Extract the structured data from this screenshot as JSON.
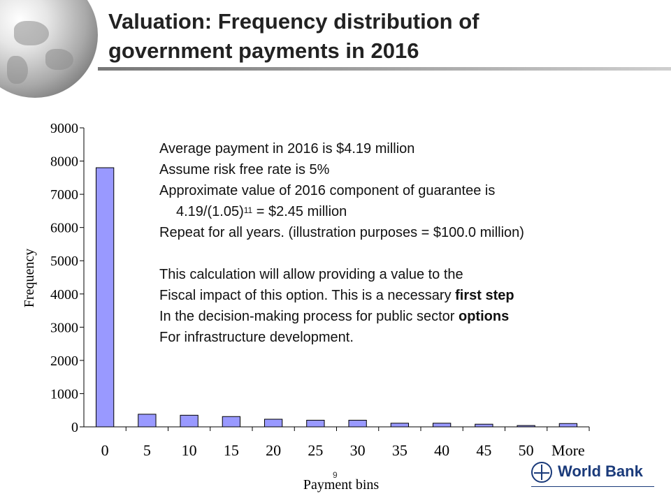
{
  "slide": {
    "title_line1": "Valuation: Frequency distribution of",
    "title_line2": "government payments in 2016",
    "page_number": "9"
  },
  "notes": {
    "line1": "Average payment in 2016 is $4.19 million",
    "line2": "Assume risk free rate is 5%",
    "line3": "Approximate value of 2016 component of guarantee is",
    "line4_pre": "4.19/(1.05)",
    "line4_sup": "11",
    "line4_post": " = $2.45 million",
    "line5": "Repeat for all years. (illustration purposes = $100.0 million)",
    "line6": "This calculation will allow providing a value to the",
    "line7_pre": "Fiscal impact of this option. This is a necessary ",
    "line7_bold": "first step",
    "line8_pre": "In the decision-making process for public sector ",
    "line8_bold": "options",
    "line9": "For infrastructure development."
  },
  "logo": {
    "text": "World Bank"
  },
  "colors": {
    "bar_fill": "#9999ff",
    "bar_stroke": "#000000",
    "logo_blue": "#1a3a7a"
  },
  "chart_data": {
    "type": "bar",
    "categories": [
      "0",
      "5",
      "10",
      "15",
      "20",
      "25",
      "30",
      "35",
      "40",
      "45",
      "50",
      "More"
    ],
    "values": [
      7800,
      380,
      350,
      310,
      230,
      200,
      200,
      110,
      110,
      80,
      40,
      100
    ],
    "xlabel": "Payment bins",
    "ylabel": "Frequency",
    "ylim": [
      0,
      9000
    ],
    "yticks": [
      0,
      1000,
      2000,
      3000,
      4000,
      5000,
      6000,
      7000,
      8000,
      9000
    ],
    "grid": false
  }
}
